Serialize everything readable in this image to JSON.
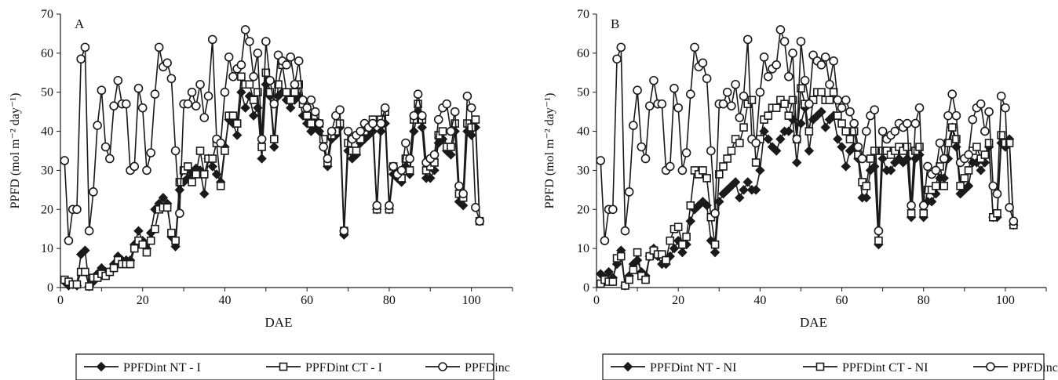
{
  "colors": {
    "line": "#1a1a1a",
    "marker_fill_open": "#ffffff",
    "marker_fill_solid": "#1a1a1a"
  },
  "chart_data": [
    {
      "type": "line",
      "panel_label": "A",
      "xlabel": "DAE",
      "ylabel": "PPFD (mol m⁻² day⁻¹)",
      "xlim": [
        0,
        110
      ],
      "ylim": [
        0,
        70
      ],
      "xticks": [
        0,
        20,
        40,
        60,
        80,
        100
      ],
      "yticks": [
        0,
        10,
        20,
        30,
        40,
        50,
        60,
        70
      ],
      "legend_position": "bottom",
      "x": [
        1,
        2,
        3,
        4,
        5,
        6,
        7,
        8,
        9,
        10,
        11,
        12,
        13,
        14,
        15,
        16,
        17,
        18,
        19,
        20,
        21,
        22,
        23,
        24,
        25,
        26,
        27,
        28,
        29,
        30,
        31,
        32,
        33,
        34,
        35,
        36,
        37,
        38,
        39,
        40,
        41,
        42,
        43,
        44,
        45,
        46,
        47,
        48,
        49,
        50,
        51,
        52,
        53,
        54,
        55,
        56,
        57,
        58,
        59,
        60,
        61,
        62,
        63,
        64,
        65,
        66,
        67,
        68,
        69,
        70,
        71,
        72,
        73,
        74,
        75,
        76,
        77,
        78,
        79,
        80,
        81,
        82,
        83,
        84,
        85,
        86,
        87,
        88,
        89,
        90,
        91,
        92,
        93,
        94,
        95,
        96,
        97,
        98,
        99,
        100,
        101,
        102
      ],
      "series": [
        {
          "name": "PPFDint NT - I",
          "marker": "diamond",
          "values": [
            1.5,
            0.5,
            0.8,
            0.5,
            8.5,
            9.5,
            0.3,
            1.5,
            3.5,
            5,
            4,
            4,
            6,
            8,
            7,
            7,
            7,
            11,
            14.5,
            12,
            10,
            14,
            20,
            21.5,
            23,
            21.5,
            13,
            10.5,
            25,
            27,
            28,
            29.5,
            30.5,
            30,
            24,
            33,
            31,
            29,
            27,
            36,
            43,
            42,
            39,
            50,
            46,
            49,
            44,
            46,
            33,
            52,
            49,
            36,
            49,
            50,
            48,
            46,
            48,
            49,
            44,
            42,
            40,
            41,
            40,
            36,
            31,
            38,
            39,
            41,
            13.5,
            35,
            33,
            34,
            37,
            38,
            39,
            40,
            20,
            40,
            42,
            20,
            29,
            28,
            27,
            31,
            29,
            40,
            45,
            41,
            28,
            28,
            30,
            37,
            38,
            35,
            34,
            40,
            22,
            21,
            40,
            39,
            41,
            17
          ]
        },
        {
          "name": "PPFDint CT - I",
          "marker": "square",
          "values": [
            2,
            1.5,
            0.8,
            0.8,
            4,
            4,
            0.3,
            2.5,
            2.5,
            3.5,
            3,
            4,
            5,
            7,
            6,
            6,
            6,
            10,
            12,
            11,
            9,
            12,
            15,
            20,
            20.5,
            20.5,
            14,
            12,
            27,
            30,
            31,
            27,
            29,
            35,
            29,
            33,
            33,
            37,
            26,
            35,
            44,
            44,
            42,
            54,
            52,
            52,
            48,
            50,
            36,
            55,
            50,
            38,
            52,
            57,
            50,
            48,
            50,
            52,
            47,
            44,
            42,
            44,
            42,
            38,
            32,
            39,
            40,
            42,
            14.5,
            37,
            35,
            35,
            38,
            40,
            41,
            43,
            20,
            43,
            45,
            20,
            31,
            29,
            28,
            33,
            30,
            43,
            47,
            43,
            30,
            31,
            32,
            39,
            40,
            36,
            36,
            42,
            24,
            23,
            42,
            41,
            43,
            17
          ]
        },
        {
          "name": "PPFDinc",
          "marker": "circle",
          "values": [
            32.5,
            12,
            20,
            20,
            58.5,
            61.5,
            14.5,
            24.5,
            41.5,
            50.5,
            36,
            33,
            46.5,
            53,
            47,
            47,
            30,
            31,
            51,
            46,
            30,
            34.5,
            49.5,
            61.5,
            56.5,
            57.5,
            53.5,
            35,
            19,
            47,
            47,
            50,
            46.5,
            52,
            43.5,
            49,
            63.5,
            38,
            37,
            50,
            59,
            54,
            56,
            57,
            66,
            63,
            54,
            60,
            38,
            63,
            53,
            47,
            59.5,
            58,
            57,
            59,
            52,
            58,
            48,
            46,
            48,
            45,
            42,
            36,
            33,
            40,
            44,
            45.5,
            14.5,
            40,
            38,
            39,
            40,
            42,
            41,
            42,
            21,
            42,
            46,
            21,
            31,
            29,
            30,
            37,
            33,
            44,
            49.5,
            44,
            32,
            33,
            34,
            43,
            46,
            47,
            40,
            45,
            26,
            24,
            49,
            46,
            20.5,
            17
          ]
        }
      ]
    },
    {
      "type": "line",
      "panel_label": "B",
      "xlabel": "DAE",
      "ylabel": "PPFD (mol m⁻² day⁻¹)",
      "xlim": [
        0,
        110
      ],
      "ylim": [
        0,
        70
      ],
      "xticks": [
        0,
        20,
        40,
        60,
        80,
        100
      ],
      "yticks": [
        0,
        10,
        20,
        30,
        40,
        50,
        60,
        70
      ],
      "legend_position": "bottom",
      "x": [
        1,
        2,
        3,
        4,
        5,
        6,
        7,
        8,
        9,
        10,
        11,
        12,
        13,
        14,
        15,
        16,
        17,
        18,
        19,
        20,
        21,
        22,
        23,
        24,
        25,
        26,
        27,
        28,
        29,
        30,
        31,
        32,
        33,
        34,
        35,
        36,
        37,
        38,
        39,
        40,
        41,
        42,
        43,
        44,
        45,
        46,
        47,
        48,
        49,
        50,
        51,
        52,
        53,
        54,
        55,
        56,
        57,
        58,
        59,
        60,
        61,
        62,
        63,
        64,
        65,
        66,
        67,
        68,
        69,
        70,
        71,
        72,
        73,
        74,
        75,
        76,
        77,
        78,
        79,
        80,
        81,
        82,
        83,
        84,
        85,
        86,
        87,
        88,
        89,
        90,
        91,
        92,
        93,
        94,
        95,
        96,
        97,
        98,
        99,
        100,
        101,
        102
      ],
      "series": [
        {
          "name": "PPFDint NT - NI",
          "marker": "diamond",
          "values": [
            3.5,
            2.5,
            4,
            2.5,
            6,
            9.5,
            0.5,
            3,
            6,
            7,
            4,
            3,
            8,
            10,
            8,
            6,
            6,
            8,
            10,
            12,
            9,
            11,
            17,
            20,
            21,
            22,
            21,
            12,
            9,
            22,
            24,
            25,
            26,
            27,
            23,
            25,
            27,
            25,
            25,
            30,
            40,
            38,
            36,
            35,
            38,
            40,
            40,
            43,
            32,
            42,
            46,
            35,
            43,
            44,
            45,
            41,
            43,
            44,
            38,
            36,
            31,
            35,
            36,
            33,
            23,
            23,
            30,
            31,
            11,
            33,
            30,
            30,
            32,
            33,
            32,
            33,
            18,
            33,
            34,
            18,
            22,
            22,
            24,
            28,
            28,
            33,
            41,
            36,
            24,
            25,
            26,
            32,
            32,
            30,
            32,
            36,
            18,
            18,
            37,
            36,
            38,
            16
          ]
        },
        {
          "name": "PPFDint CT - NI",
          "marker": "square",
          "values": [
            1,
            2,
            1.5,
            1.5,
            7.5,
            8,
            0.5,
            2,
            4.5,
            9,
            3,
            2,
            8,
            9.5,
            8.5,
            8.5,
            7,
            12,
            15,
            15.5,
            11,
            13,
            21,
            30,
            29,
            30,
            28,
            18,
            11,
            29,
            31,
            33,
            35,
            38,
            37,
            41,
            47,
            48,
            32,
            38,
            43,
            44,
            46,
            46,
            48,
            47,
            44,
            48,
            38,
            51,
            47,
            40,
            48,
            50,
            50,
            48,
            48,
            50,
            44,
            42,
            40,
            38,
            40,
            34,
            27,
            26,
            33,
            35,
            12,
            35,
            35,
            34,
            35,
            36,
            35,
            36,
            19,
            35,
            36,
            19,
            25,
            25,
            26,
            31,
            26,
            37,
            41,
            38,
            26,
            28,
            30,
            35,
            36,
            33,
            34,
            37,
            18,
            19,
            39,
            37,
            37,
            16
          ]
        },
        {
          "name": "PPFDinc",
          "marker": "circle",
          "values": [
            32.5,
            12,
            20,
            20,
            58.5,
            61.5,
            14.5,
            24.5,
            41.5,
            50.5,
            36,
            33,
            46.5,
            53,
            47,
            47,
            30,
            31,
            51,
            46,
            30,
            34.5,
            49.5,
            61.5,
            56.5,
            57.5,
            53.5,
            35,
            19,
            47,
            47,
            50,
            46.5,
            52,
            43.5,
            49,
            63.5,
            38,
            37,
            50,
            59,
            54,
            56,
            57,
            66,
            63,
            54,
            60,
            38,
            63,
            53,
            47,
            59.5,
            58,
            57,
            59,
            52,
            58,
            48,
            46,
            48,
            45,
            42,
            36,
            33,
            40,
            44,
            45.5,
            14.5,
            40,
            38,
            39,
            40,
            42,
            41,
            42,
            21,
            42,
            46,
            21,
            31,
            29,
            30,
            37,
            33,
            44,
            49.5,
            44,
            32,
            33,
            34,
            43,
            46,
            47,
            40,
            45,
            26,
            24,
            49,
            46,
            20.5,
            17
          ]
        }
      ]
    }
  ]
}
